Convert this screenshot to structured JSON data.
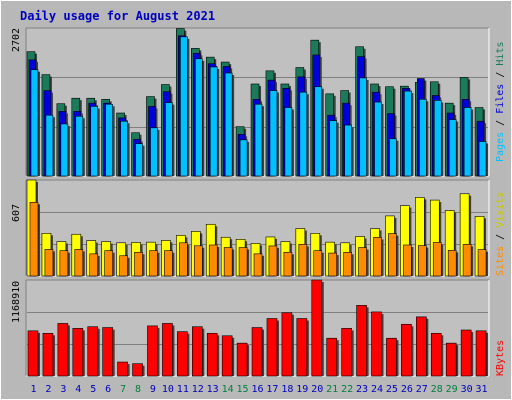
{
  "title": "Daily usage for August 2021",
  "colors": {
    "background": "#b8b8b8",
    "panel": "#c0c0c0",
    "title": "#0000c0",
    "hits": "#1a7a5a",
    "files": "#0000d8",
    "pages": "#00c0ff",
    "visits": "#ffff00",
    "sites": "#ff8c00",
    "kbytes": "#ff0000",
    "weekday": "#0000c0",
    "weekend": "#008040"
  },
  "chart_data": [
    {
      "type": "bar",
      "name": "hits-files-pages",
      "ymax_label": "2702",
      "ylim": [
        0,
        2702
      ],
      "legend": [
        "Pages",
        "/",
        "Files",
        "/",
        "Hits"
      ],
      "categories": [
        "1",
        "2",
        "3",
        "4",
        "5",
        "6",
        "7",
        "8",
        "9",
        "10",
        "11",
        "12",
        "13",
        "14",
        "15",
        "16",
        "17",
        "18",
        "19",
        "20",
        "21",
        "22",
        "23",
        "24",
        "25",
        "26",
        "27",
        "28",
        "29",
        "30",
        "31"
      ],
      "weekend": [
        false,
        false,
        false,
        false,
        false,
        false,
        true,
        true,
        false,
        false,
        false,
        false,
        false,
        true,
        true,
        false,
        false,
        false,
        false,
        false,
        true,
        true,
        false,
        false,
        false,
        false,
        false,
        true,
        true,
        false,
        false
      ],
      "series": [
        {
          "name": "Hits",
          "values": [
            2270,
            1850,
            1320,
            1420,
            1420,
            1400,
            1150,
            790,
            1450,
            1670,
            2690,
            2330,
            2170,
            2080,
            900,
            1680,
            1920,
            1680,
            1980,
            2480,
            1500,
            1560,
            2360,
            1680,
            1630,
            1640,
            1710,
            1720,
            1330,
            1800,
            1250
          ]
        },
        {
          "name": "Files",
          "values": [
            2120,
            1560,
            1180,
            1180,
            1330,
            1330,
            1060,
            670,
            1270,
            1540,
            2560,
            2240,
            2050,
            2000,
            760,
            1400,
            1750,
            1600,
            1810,
            2210,
            1110,
            1330,
            2180,
            1530,
            1140,
            1600,
            1780,
            1470,
            1150,
            1400,
            1000
          ]
        },
        {
          "name": "Pages",
          "values": [
            1940,
            1110,
            950,
            1090,
            1270,
            1310,
            1000,
            590,
            880,
            1340,
            2540,
            2140,
            1990,
            1880,
            660,
            1310,
            1560,
            1250,
            1530,
            1630,
            1010,
            930,
            1790,
            1350,
            680,
            1550,
            1400,
            1380,
            1030,
            1250,
            630
          ]
        }
      ]
    },
    {
      "type": "bar",
      "name": "visits-sites",
      "ymax_label": "607",
      "ylim": [
        0,
        607
      ],
      "legend": [
        "Sites",
        "/",
        "Visits"
      ],
      "categories": [
        "1",
        "2",
        "3",
        "4",
        "5",
        "6",
        "7",
        "8",
        "9",
        "10",
        "11",
        "12",
        "13",
        "14",
        "15",
        "16",
        "17",
        "18",
        "19",
        "20",
        "21",
        "22",
        "23",
        "24",
        "25",
        "26",
        "27",
        "28",
        "29",
        "30",
        "31"
      ],
      "series": [
        {
          "name": "Visits",
          "values": [
            607,
            270,
            218,
            264,
            224,
            218,
            210,
            212,
            214,
            225,
            257,
            282,
            327,
            245,
            232,
            206,
            247,
            218,
            300,
            270,
            214,
            210,
            250,
            300,
            380,
            445,
            497,
            480,
            414,
            520,
            377
          ]
        },
        {
          "name": "Sites",
          "values": [
            466,
            168,
            160,
            168,
            140,
            160,
            128,
            150,
            160,
            160,
            210,
            191,
            196,
            180,
            180,
            140,
            190,
            150,
            200,
            160,
            145,
            150,
            180,
            244,
            268,
            196,
            192,
            212,
            162,
            200,
            167
          ]
        }
      ]
    },
    {
      "type": "bar",
      "name": "kbytes",
      "ymax_label": "1168910",
      "ylim": [
        0,
        1168910
      ],
      "legend": [
        "KBytes"
      ],
      "categories": [
        "1",
        "2",
        "3",
        "4",
        "5",
        "6",
        "7",
        "8",
        "9",
        "10",
        "11",
        "12",
        "13",
        "14",
        "15",
        "16",
        "17",
        "18",
        "19",
        "20",
        "21",
        "22",
        "23",
        "24",
        "25",
        "26",
        "27",
        "28",
        "29",
        "30",
        "31"
      ],
      "series": [
        {
          "name": "KBytes",
          "values": [
            550000,
            520000,
            640000,
            580000,
            600000,
            590000,
            170000,
            150000,
            610000,
            640000,
            540000,
            600000,
            520000,
            490000,
            400000,
            590000,
            700000,
            770000,
            700000,
            1168910,
            460000,
            580000,
            860000,
            780000,
            460000,
            630000,
            720000,
            520000,
            400000,
            560000,
            550000
          ]
        }
      ]
    }
  ]
}
